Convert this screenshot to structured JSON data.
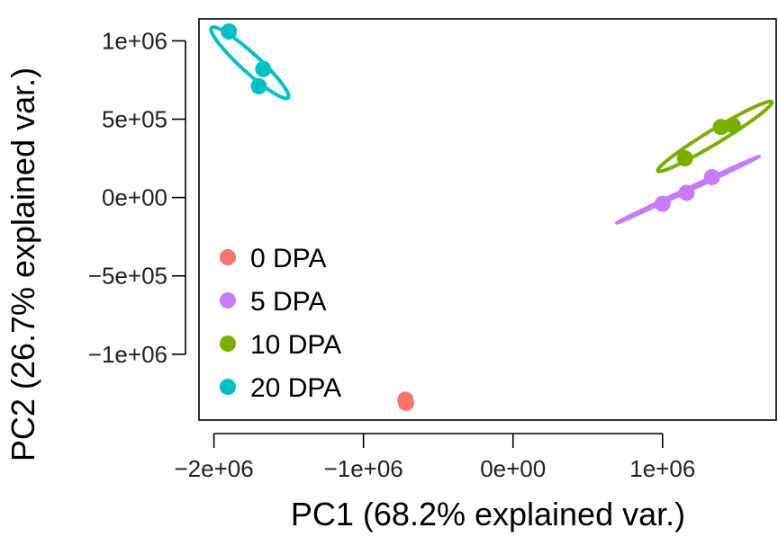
{
  "chart_data": {
    "type": "scatter",
    "xlabel": "PC1 (68.2% explained var.)",
    "ylabel": "PC2 (26.7% explained var.)",
    "xlim": [
      -2100000,
      1760000
    ],
    "ylim": [
      -1420000,
      1140000
    ],
    "x_ticks": [
      {
        "value": -2000000,
        "label": "−2e+06"
      },
      {
        "value": -1000000,
        "label": "−1e+06"
      },
      {
        "value": 0,
        "label": "0e+00"
      },
      {
        "value": 1000000,
        "label": "1e+06"
      }
    ],
    "y_ticks": [
      {
        "value": 1000000,
        "label": "1e+06"
      },
      {
        "value": 500000,
        "label": "5e+05"
      },
      {
        "value": 0,
        "label": "0e+00"
      },
      {
        "value": -500000,
        "label": "−5e+05"
      },
      {
        "value": -1000000,
        "label": "−1e+06"
      }
    ],
    "grid": false,
    "legend_position": "bottom-left",
    "series": [
      {
        "name": "0 DPA",
        "color": "#f8766d",
        "points": [
          [
            -720000,
            -1290000
          ],
          [
            -715000,
            -1310000
          ]
        ]
      },
      {
        "name": "5 DPA",
        "color": "#c77cff",
        "points": [
          [
            1000000,
            -40000
          ],
          [
            1160000,
            30000
          ],
          [
            1330000,
            130000
          ]
        ]
      },
      {
        "name": "10 DPA",
        "color": "#7cae00",
        "points": [
          [
            1150000,
            250000
          ],
          [
            1390000,
            450000
          ],
          [
            1470000,
            460000
          ]
        ]
      },
      {
        "name": "20 DPA",
        "color": "#00bfc4",
        "points": [
          [
            -1900000,
            1060000
          ],
          [
            -1670000,
            820000
          ],
          [
            -1700000,
            710000
          ]
        ]
      }
    ],
    "ellipses": [
      {
        "series": "5 DPA",
        "center": [
          1170000,
          50000
        ],
        "semi_major": 520000,
        "semi_minor": 8000,
        "angle_deg": 24
      },
      {
        "series": "10 DPA",
        "center": [
          1350000,
          390000
        ],
        "semi_major": 440000,
        "semi_minor": 45000,
        "angle_deg": 30
      },
      {
        "series": "20 DPA",
        "center": [
          -1760000,
          860000
        ],
        "semi_major": 340000,
        "semi_minor": 60000,
        "angle_deg": -41
      }
    ]
  }
}
